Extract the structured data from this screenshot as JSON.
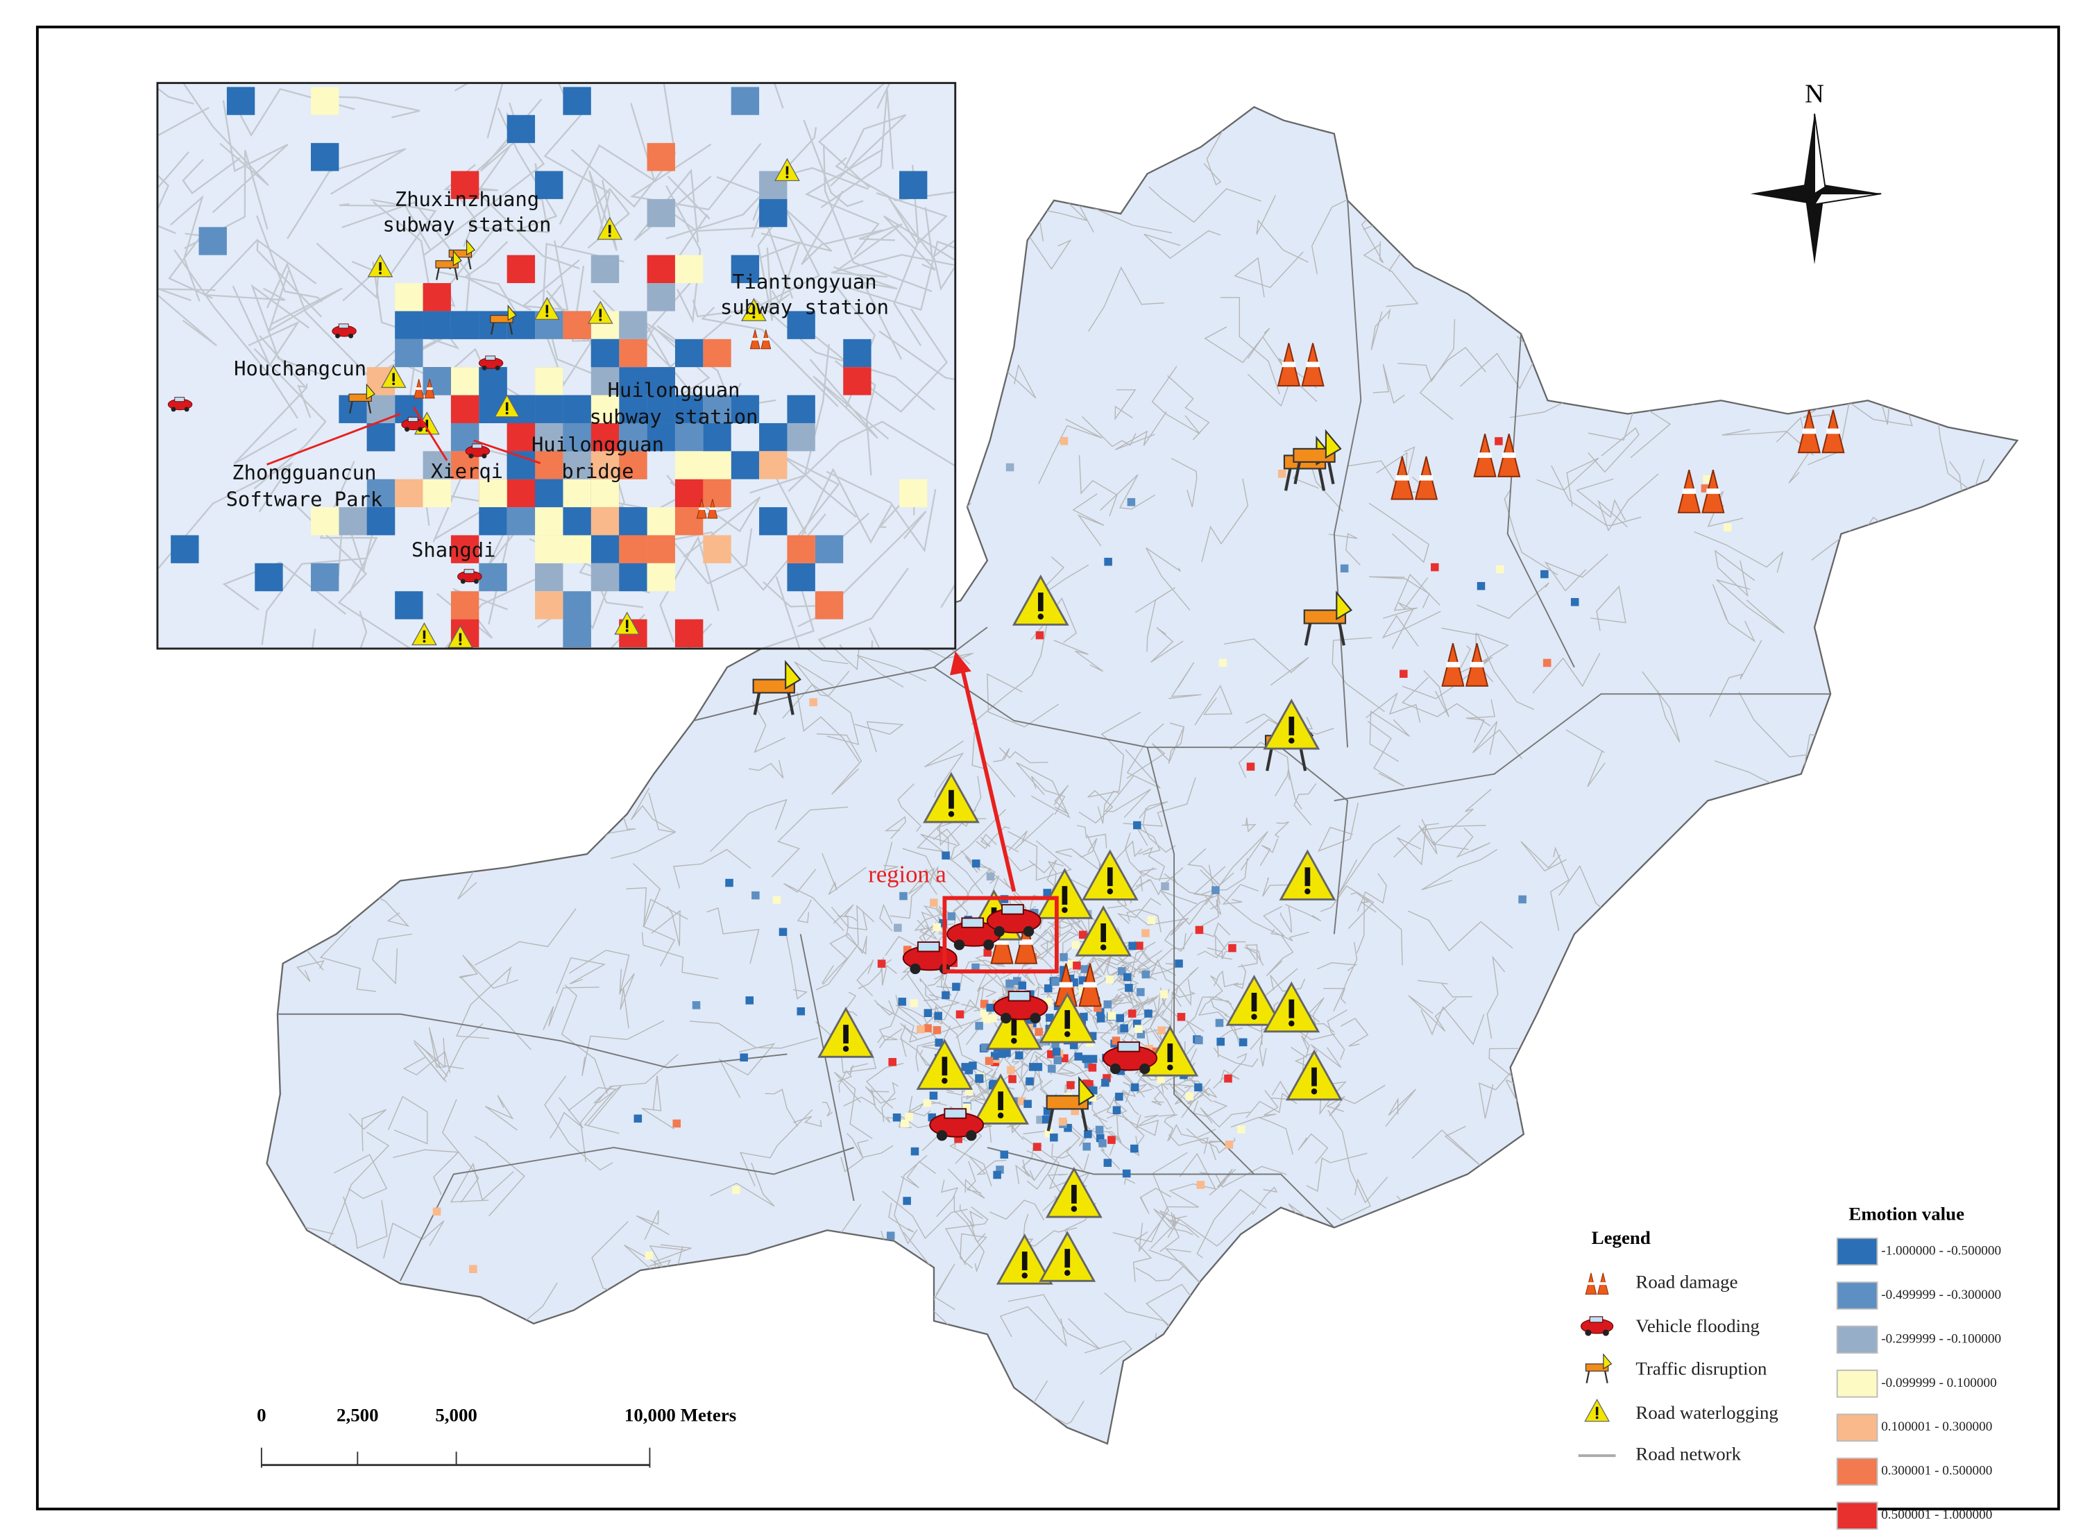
{
  "map": {
    "north_label": "N",
    "region_label": "region a"
  },
  "inset": {
    "labels": [
      [
        "Zhuxinzhuang",
        "subway station"
      ],
      [
        "Tiantongyuan",
        "subway station"
      ],
      [
        "Houchangcun"
      ],
      [
        "Huilongguan",
        "subway station"
      ],
      [
        "Huilongguan",
        "bridge"
      ],
      [
        "Zhongguancun",
        "Software Park"
      ],
      [
        "Xierqi"
      ],
      [
        "Shangdi"
      ]
    ]
  },
  "legend": {
    "title": "Legend",
    "items": [
      "Road damage",
      "Vehicle flooding",
      "Traffic disruption",
      "Road waterlogging",
      "Road network"
    ]
  },
  "emotion_legend": {
    "title": "Emotion value",
    "classes": [
      {
        "label": "-1.000000 - -0.500000",
        "color": "#2b6fb6"
      },
      {
        "label": "-0.499999 - -0.300000",
        "color": "#5e8fc2"
      },
      {
        "label": "-0.299999 - -0.100000",
        "color": "#97aec9"
      },
      {
        "label": "-0.099999 - 0.100000",
        "color": "#fdfac4"
      },
      {
        "label": "0.100001 - 0.300000",
        "color": "#f9b98a"
      },
      {
        "label": "0.300001 - 0.500000",
        "color": "#f3794f"
      },
      {
        "label": "0.500001 - 1.000000",
        "color": "#e8302e"
      }
    ]
  },
  "scale_bar": {
    "labels": [
      "0",
      "2,500",
      "5,000",
      "10,000 Meters"
    ]
  }
}
